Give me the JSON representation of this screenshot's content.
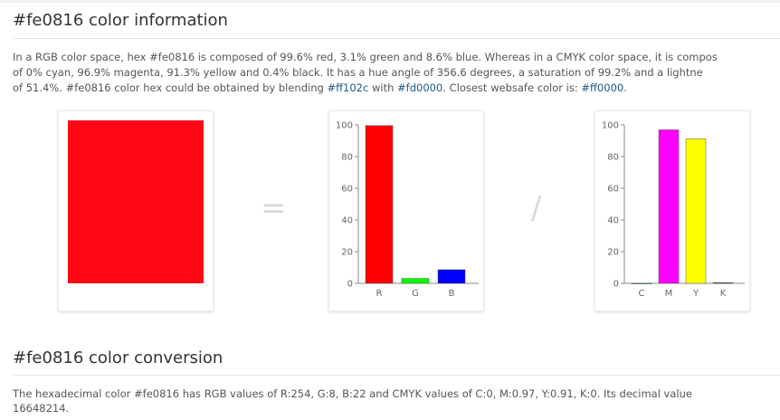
{
  "color": {
    "hex": "#fe0816"
  },
  "section1": {
    "title": "#fe0816 color information",
    "line1": "In a RGB color space, hex #fe0816 is composed of 99.6% red, 3.1% green and 8.6% blue. Whereas in a CMYK color space, it is compos",
    "line2": "of 0% cyan, 96.9% magenta, 91.3% yellow and 0.4% black. It has a hue angle of 356.6 degrees, a saturation of 99.2% and a lightne",
    "line3_a": "of 51.4%. #fe0816 color hex could be obtained by blending ",
    "blend1": "#ff102c",
    "line3_b": " with ",
    "blend2": "#fd0000",
    "line3_c": ". Closest websafe color is: ",
    "websafe": "#ff0000",
    "line3_d": "."
  },
  "operators": {
    "equals": "=",
    "slash": "/"
  },
  "chart_data": [
    {
      "type": "bar",
      "categories": [
        "R",
        "G",
        "B"
      ],
      "values": [
        99.6,
        3.1,
        8.6
      ],
      "colors": [
        "#ff0000",
        "#00ff00",
        "#0000ff"
      ],
      "yticks": [
        "0",
        "20",
        "40",
        "60",
        "80",
        "100"
      ],
      "ylim": [
        0,
        100
      ]
    },
    {
      "type": "bar",
      "categories": [
        "C",
        "M",
        "Y",
        "K"
      ],
      "values": [
        0,
        96.9,
        91.3,
        0.4
      ],
      "colors": [
        "#00ffff",
        "#ff00ff",
        "#ffff00",
        "#000000"
      ],
      "yticks": [
        "0",
        "20",
        "40",
        "60",
        "80",
        "100"
      ],
      "ylim": [
        0,
        100
      ]
    }
  ],
  "section2": {
    "title": "#fe0816 color conversion",
    "line1": "The hexadecimal color #fe0816 has RGB values of R:254, G:8, B:22 and CMYK values of C:0, M:0.97, Y:0.91, K:0. Its decimal value",
    "line2": "16648214."
  }
}
